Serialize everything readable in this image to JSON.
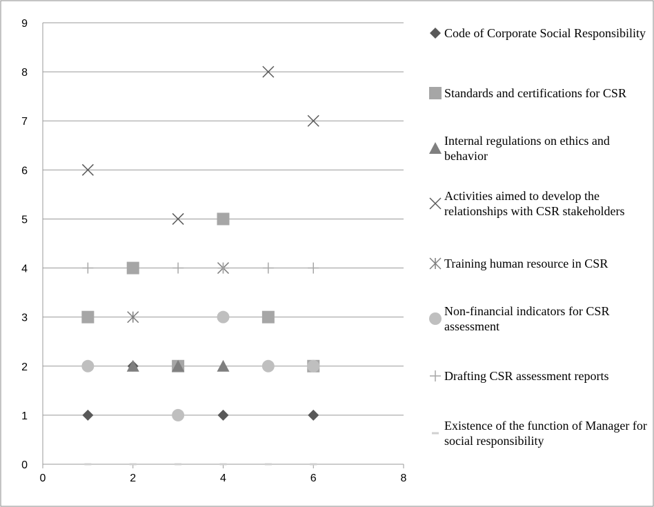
{
  "chart_data": {
    "type": "scatter",
    "xlim": [
      0,
      8
    ],
    "xticks": [
      0,
      2,
      4,
      6,
      8
    ],
    "ylim": [
      0,
      9
    ],
    "yticks": [
      0,
      1,
      2,
      3,
      4,
      5,
      6,
      7,
      8,
      9
    ],
    "grid": true,
    "legend": "right",
    "series": [
      {
        "name": "Code of Corporate Social Responsibility",
        "marker": "diamond",
        "color": "#595959",
        "x": [
          1,
          2,
          3,
          4,
          6
        ],
        "values": [
          1,
          2,
          2,
          1,
          1
        ]
      },
      {
        "name": "Standards and certifications for CSR",
        "marker": "square",
        "color": "#a6a6a6",
        "x": [
          1,
          2,
          3,
          4,
          5,
          6
        ],
        "values": [
          3,
          4,
          2,
          5,
          3,
          2
        ]
      },
      {
        "name": "Internal regulations on ethics and behavior",
        "marker": "triangle",
        "color": "#7f7f7f",
        "x": [
          2,
          3,
          4
        ],
        "values": [
          2,
          2,
          2
        ]
      },
      {
        "name": "Activities aimed to develop the relationships with CSR stakeholders",
        "marker": "x",
        "color": "#595959",
        "x": [
          1,
          3,
          5,
          6
        ],
        "values": [
          6,
          5,
          8,
          7
        ]
      },
      {
        "name": "Training human resource in CSR",
        "marker": "star",
        "color": "#7f7f7f",
        "x": [
          2,
          4
        ],
        "values": [
          3,
          4
        ]
      },
      {
        "name": "Non-financial indicators for CSR assessment",
        "marker": "circle",
        "color": "#bfbfbf",
        "x": [
          1,
          3,
          4,
          5,
          6
        ],
        "values": [
          2,
          1,
          3,
          2,
          2
        ]
      },
      {
        "name": "Drafting CSR assessment reports",
        "marker": "plus",
        "color": "#a6a6a6",
        "x": [
          1,
          2,
          3,
          4,
          5,
          6
        ],
        "values": [
          4,
          4,
          4,
          4,
          4,
          4
        ]
      },
      {
        "name": "Existence of the function of Manager for social responsibility",
        "marker": "dash",
        "color": "#d0d0d0",
        "x": [
          1,
          2,
          3,
          4,
          5,
          6
        ],
        "values": [
          0,
          0,
          0,
          0,
          0,
          0
        ]
      }
    ]
  }
}
